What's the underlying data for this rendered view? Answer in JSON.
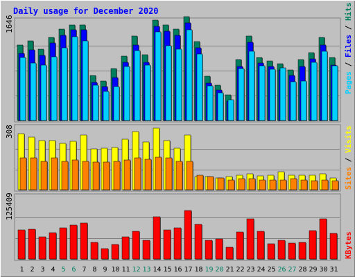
{
  "chart_data": [
    {
      "type": "bar",
      "title": "Daily usage for December 2020",
      "categories": [
        "1",
        "2",
        "3",
        "4",
        "5",
        "6",
        "7",
        "8",
        "9",
        "10",
        "11",
        "12",
        "13",
        "14",
        "15",
        "16",
        "17",
        "18",
        "19",
        "20",
        "21",
        "22",
        "23",
        "24",
        "25",
        "26",
        "27",
        "28",
        "29",
        "30",
        "31"
      ],
      "weekend_days": [
        "5",
        "6",
        "12",
        "13",
        "19",
        "20",
        "26",
        "27"
      ],
      "ymax_label": "1646",
      "ylim": [
        0,
        1646
      ],
      "legend": [
        "Pages",
        "Files",
        "Hits"
      ],
      "series": [
        {
          "name": "Hits",
          "color": "#007f5f",
          "values": [
            1250,
            1310,
            1180,
            1375,
            1505,
            1580,
            1580,
            740,
            655,
            855,
            1065,
            1395,
            1085,
            1655,
            1580,
            1505,
            1720,
            1300,
            730,
            580,
            420,
            1010,
            1395,
            1045,
            985,
            935,
            835,
            1005,
            1115,
            1375,
            1035
          ]
        },
        {
          "name": "Files",
          "color": "#0000ff",
          "values": [
            1110,
            1170,
            1070,
            1280,
            1410,
            1500,
            1500,
            625,
            560,
            705,
            955,
            1245,
            960,
            1550,
            1480,
            1410,
            1610,
            1200,
            615,
            500,
            325,
            895,
            1290,
            945,
            890,
            840,
            740,
            895,
            1020,
            1245,
            920
          ]
        },
        {
          "name": "Pages",
          "color": "#00cfff",
          "values": [
            1045,
            950,
            915,
            1050,
            1200,
            1380,
            1320,
            580,
            480,
            560,
            895,
            1160,
            910,
            1460,
            1230,
            1180,
            1500,
            1095,
            570,
            460,
            345,
            860,
            1145,
            905,
            850,
            870,
            635,
            655,
            955,
            1145,
            900
          ]
        }
      ]
    },
    {
      "type": "bar",
      "categories": [
        "1",
        "2",
        "3",
        "4",
        "5",
        "6",
        "7",
        "8",
        "9",
        "10",
        "11",
        "12",
        "13",
        "14",
        "15",
        "16",
        "17",
        "18",
        "19",
        "20",
        "21",
        "22",
        "23",
        "24",
        "25",
        "26",
        "27",
        "28",
        "29",
        "30",
        "31"
      ],
      "ymax_label": "308",
      "ylim": [
        0,
        308
      ],
      "legend": [
        "Sites",
        "Visits"
      ],
      "series": [
        {
          "name": "Visits",
          "color": "#ffff00",
          "values": [
            285,
            265,
            250,
            250,
            235,
            245,
            275,
            205,
            210,
            215,
            255,
            295,
            240,
            310,
            250,
            210,
            275,
            65,
            65,
            60,
            65,
            75,
            80,
            70,
            75,
            90,
            75,
            75,
            75,
            80,
            60
          ]
        },
        {
          "name": "Sites",
          "color": "#ff8000",
          "values": [
            160,
            160,
            145,
            160,
            145,
            150,
            145,
            140,
            140,
            145,
            150,
            160,
            155,
            165,
            160,
            145,
            145,
            75,
            65,
            60,
            50,
            55,
            55,
            50,
            50,
            50,
            55,
            50,
            45,
            50,
            45
          ]
        }
      ]
    },
    {
      "type": "bar",
      "categories": [
        "1",
        "2",
        "3",
        "4",
        "5",
        "6",
        "7",
        "8",
        "9",
        "10",
        "11",
        "12",
        "13",
        "14",
        "15",
        "16",
        "17",
        "18",
        "19",
        "20",
        "21",
        "22",
        "23",
        "24",
        "25",
        "26",
        "27",
        "28",
        "29",
        "30",
        "31"
      ],
      "ymax_label": "125409",
      "ylim": [
        0,
        125409
      ],
      "legend": [
        "KBytes"
      ],
      "series": [
        {
          "name": "KBytes",
          "color": "#ff0000",
          "values": [
            58000,
            60000,
            45000,
            53000,
            63000,
            68000,
            73000,
            34000,
            21000,
            29000,
            45000,
            56000,
            38000,
            85000,
            59000,
            63000,
            98000,
            69000,
            37000,
            40000,
            24000,
            55000,
            81000,
            56000,
            30000,
            37000,
            32000,
            33000,
            57000,
            81000,
            51000
          ]
        }
      ]
    }
  ],
  "colors": {
    "background": "#c0c0c0",
    "plot_background": "#c0c0c0",
    "title_color": "#0000ff",
    "weekend_label_color": "#00805f"
  }
}
